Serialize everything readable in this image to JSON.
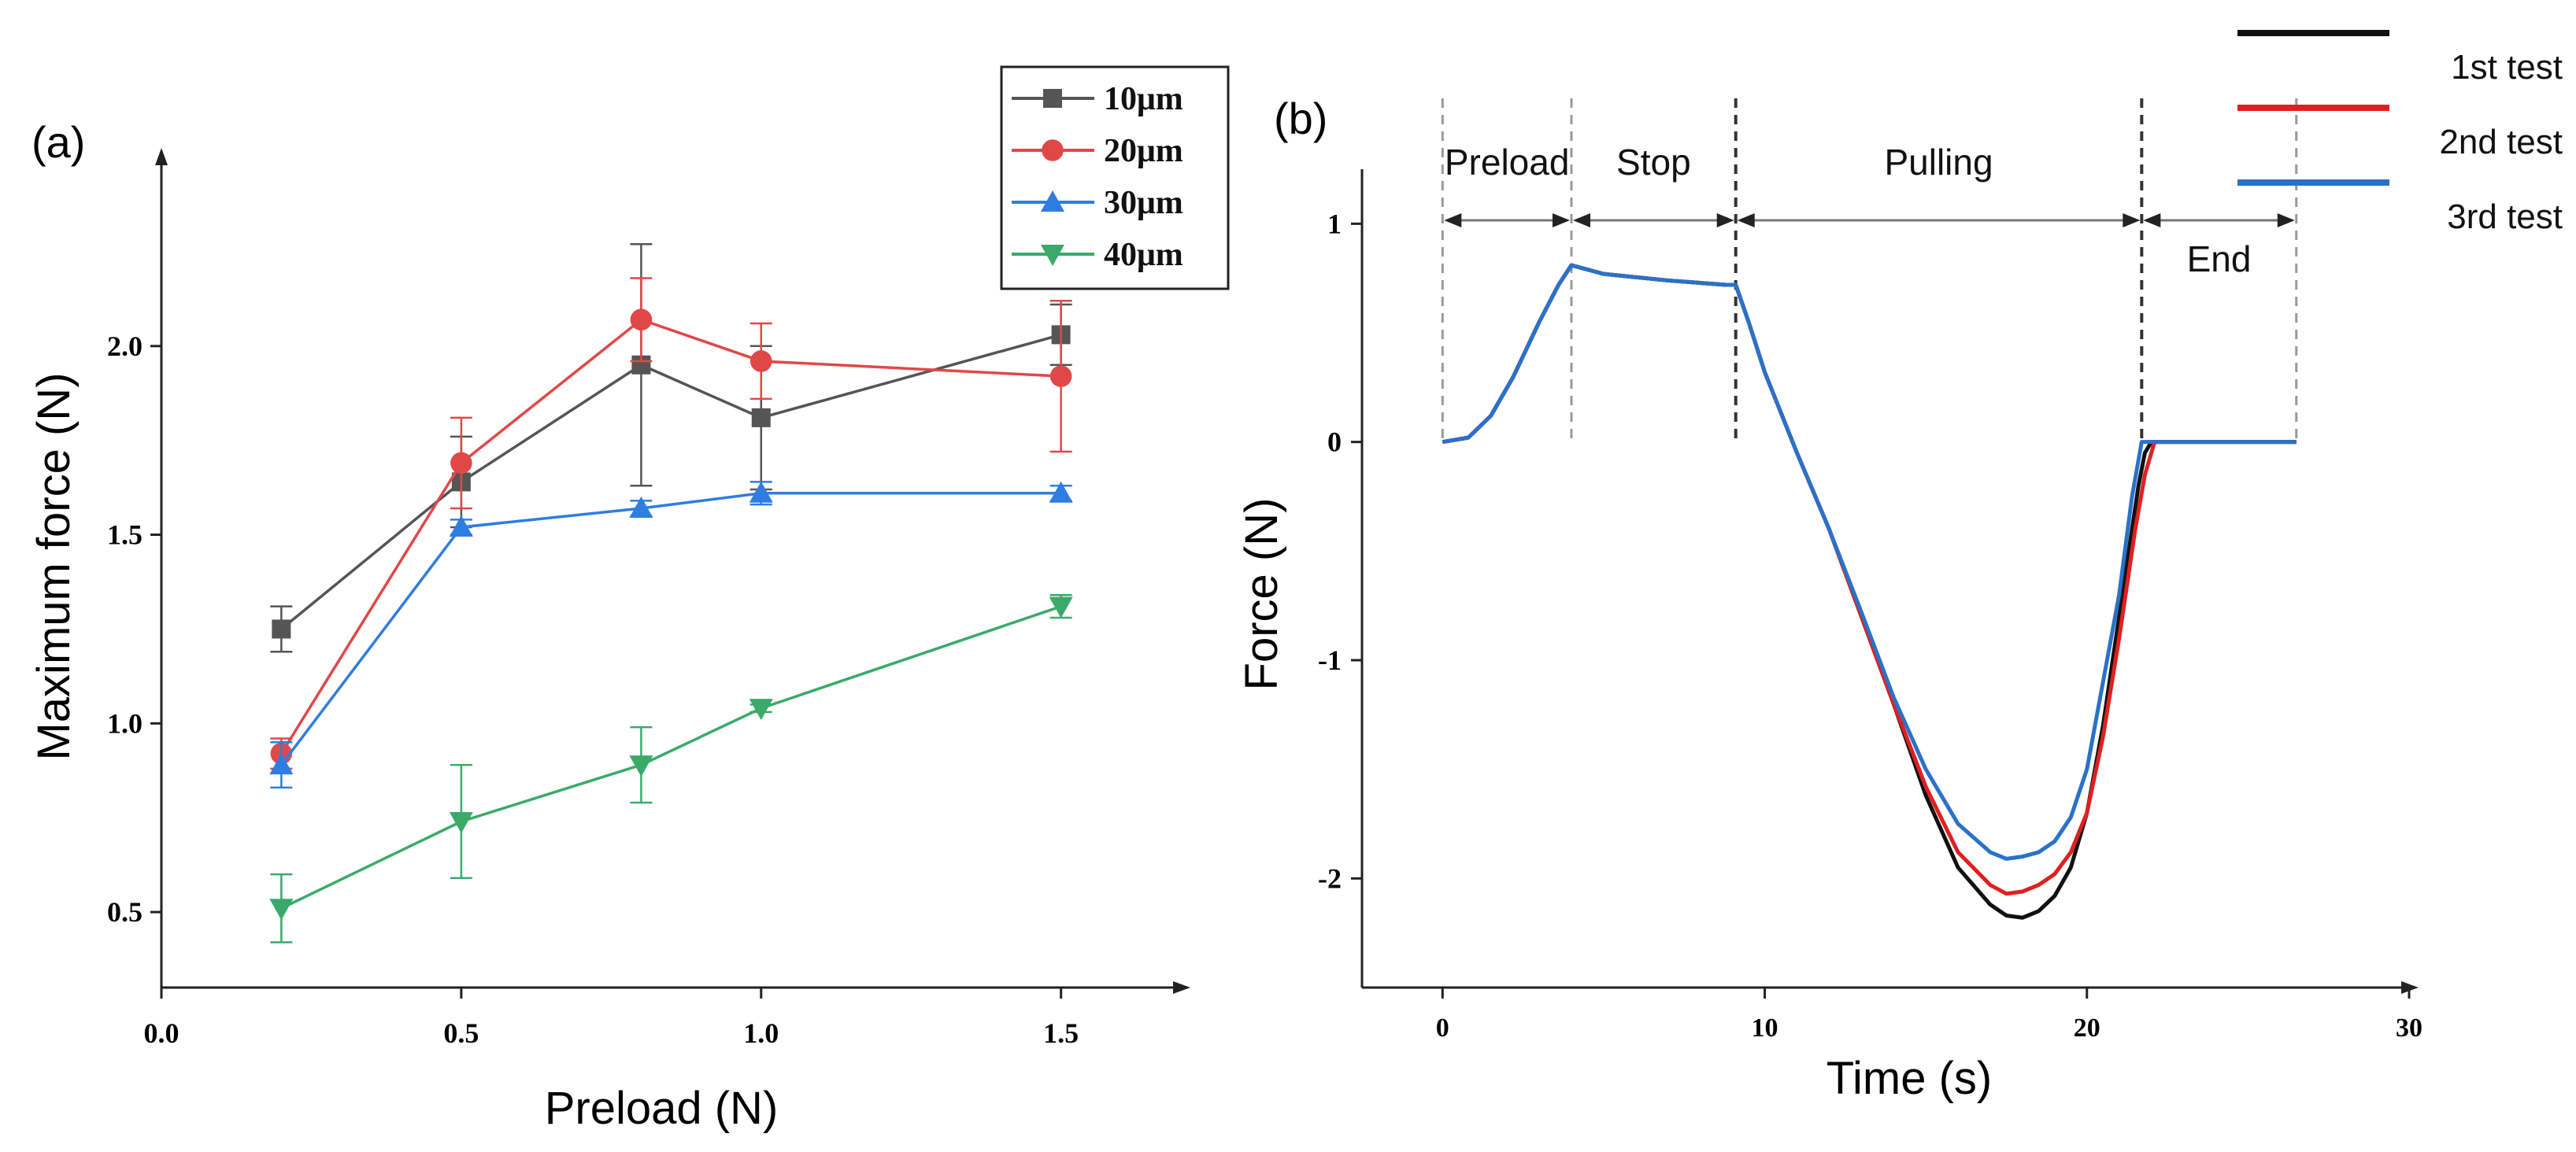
{
  "chart_data": [
    {
      "type": "line",
      "panel_label": "(a)",
      "xlabel": "Preload (N)",
      "ylabel": "Maximum force (N)",
      "xlim": [
        0.0,
        1.7
      ],
      "ylim": [
        0.3,
        2.5
      ],
      "xticks": [
        "0.0",
        "0.5",
        "1.0",
        "1.5"
      ],
      "yticks": [
        "0.5",
        "1.0",
        "1.5",
        "2.0"
      ],
      "x": [
        0.2,
        0.5,
        0.8,
        1.0,
        1.5
      ],
      "legend_position": "top-right",
      "series": [
        {
          "name": "10μm",
          "color": "#555555",
          "marker": "square",
          "values": [
            1.25,
            1.64,
            1.95,
            1.81,
            2.03
          ],
          "errors": [
            0.06,
            0.12,
            0.32,
            0.19,
            0.08
          ]
        },
        {
          "name": "20μm",
          "color": "#e04848",
          "marker": "circle",
          "values": [
            0.92,
            1.69,
            2.07,
            1.96,
            1.92
          ],
          "errors": [
            0.04,
            0.12,
            0.11,
            0.1,
            0.2
          ]
        },
        {
          "name": "30μm",
          "color": "#2f7de0",
          "marker": "triangle-up",
          "values": [
            0.89,
            1.52,
            1.57,
            1.61,
            1.61
          ],
          "errors": [
            0.06,
            0.02,
            0.02,
            0.03,
            0.02
          ]
        },
        {
          "name": "40μm",
          "color": "#3aaa6a",
          "marker": "triangle-down",
          "values": [
            0.51,
            0.74,
            0.89,
            1.04,
            1.31
          ],
          "errors": [
            0.09,
            0.15,
            0.1,
            0.01,
            0.03
          ]
        }
      ]
    },
    {
      "type": "line",
      "panel_label": "(b)",
      "xlabel": "Time (s)",
      "ylabel": "Force (N)",
      "xlim": [
        -2.5,
        30
      ],
      "ylim": [
        -2.5,
        1.25
      ],
      "xticks": [
        "0",
        "10",
        "20",
        "30"
      ],
      "yticks": [
        "1",
        "0",
        "-1",
        "-2"
      ],
      "legend_position": "top-right",
      "phase_boundaries": [
        0,
        4,
        9.1,
        21.7,
        26.5
      ],
      "phases": [
        "Preload",
        "Stop",
        "Pulling",
        "End"
      ],
      "series": [
        {
          "name": "1st test",
          "color": "#111111",
          "x": [
            0,
            0.8,
            1.5,
            2.2,
            3.0,
            3.6,
            4.0,
            5.0,
            7.0,
            8.8,
            9.1,
            9.5,
            10.0,
            11.0,
            12.0,
            13.0,
            14.0,
            15.0,
            16.0,
            17.0,
            17.5,
            18.0,
            18.5,
            19.0,
            19.5,
            20.0,
            20.5,
            21.0,
            21.3,
            21.6,
            21.8,
            22.0,
            26.5
          ],
          "y": [
            0,
            0.02,
            0.12,
            0.3,
            0.55,
            0.72,
            0.81,
            0.77,
            0.74,
            0.72,
            0.72,
            0.55,
            0.32,
            -0.05,
            -0.4,
            -0.8,
            -1.2,
            -1.62,
            -1.95,
            -2.12,
            -2.17,
            -2.18,
            -2.15,
            -2.08,
            -1.95,
            -1.7,
            -1.3,
            -0.8,
            -0.5,
            -0.2,
            -0.05,
            0,
            0
          ]
        },
        {
          "name": "2nd test",
          "color": "#e02020",
          "x": [
            0,
            0.8,
            1.5,
            2.2,
            3.0,
            3.6,
            4.0,
            5.0,
            7.0,
            8.8,
            9.1,
            9.5,
            10.0,
            11.0,
            12.0,
            13.0,
            14.0,
            15.0,
            16.0,
            17.0,
            17.5,
            18.0,
            18.5,
            19.0,
            19.5,
            20.0,
            20.5,
            21.0,
            21.5,
            21.8,
            22.1,
            26.5
          ],
          "y": [
            0,
            0.02,
            0.12,
            0.3,
            0.55,
            0.72,
            0.81,
            0.77,
            0.74,
            0.72,
            0.72,
            0.55,
            0.32,
            -0.05,
            -0.4,
            -0.8,
            -1.2,
            -1.58,
            -1.88,
            -2.03,
            -2.07,
            -2.06,
            -2.03,
            -1.98,
            -1.88,
            -1.7,
            -1.35,
            -0.9,
            -0.4,
            -0.15,
            0,
            0
          ]
        },
        {
          "name": "3rd test",
          "color": "#2a72c8",
          "x": [
            0,
            0.8,
            1.5,
            2.2,
            3.0,
            3.6,
            4.0,
            5.0,
            7.0,
            8.8,
            9.1,
            9.5,
            10.0,
            11.0,
            12.0,
            13.0,
            14.0,
            15.0,
            16.0,
            17.0,
            17.5,
            18.0,
            18.5,
            19.0,
            19.5,
            20.0,
            20.5,
            21.0,
            21.4,
            21.7,
            26.5
          ],
          "y": [
            0,
            0.02,
            0.12,
            0.3,
            0.55,
            0.72,
            0.81,
            0.77,
            0.74,
            0.72,
            0.72,
            0.55,
            0.32,
            -0.05,
            -0.4,
            -0.78,
            -1.17,
            -1.5,
            -1.75,
            -1.88,
            -1.91,
            -1.9,
            -1.88,
            -1.83,
            -1.72,
            -1.5,
            -1.1,
            -0.7,
            -0.25,
            0,
            0
          ]
        }
      ]
    }
  ]
}
